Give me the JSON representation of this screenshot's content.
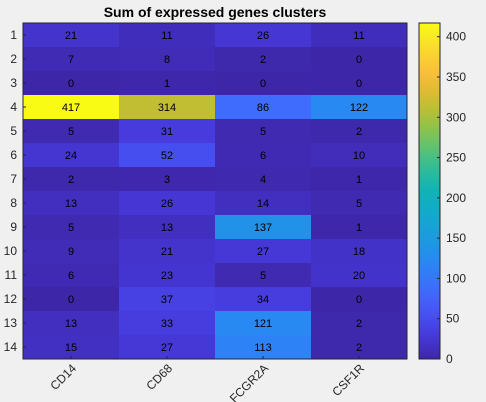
{
  "chart_data": {
    "type": "heatmap",
    "title": "Sum of expressed genes clusters",
    "xlabel": "",
    "ylabel": "",
    "x_categories": [
      "CD14",
      "CD68",
      "FCGR2A",
      "CSF1R"
    ],
    "y_categories": [
      "1",
      "2",
      "3",
      "4",
      "5",
      "6",
      "7",
      "8",
      "9",
      "10",
      "11",
      "12",
      "13",
      "14"
    ],
    "values": [
      [
        21,
        11,
        26,
        11
      ],
      [
        7,
        8,
        2,
        0
      ],
      [
        0,
        1,
        0,
        0
      ],
      [
        417,
        314,
        86,
        122
      ],
      [
        5,
        31,
        5,
        2
      ],
      [
        24,
        52,
        6,
        10
      ],
      [
        2,
        3,
        4,
        1
      ],
      [
        13,
        26,
        14,
        5
      ],
      [
        5,
        13,
        137,
        1
      ],
      [
        9,
        21,
        27,
        18
      ],
      [
        6,
        23,
        5,
        20
      ],
      [
        0,
        37,
        34,
        0
      ],
      [
        13,
        33,
        121,
        2
      ],
      [
        15,
        27,
        113,
        2
      ]
    ],
    "colorbar": {
      "colormap": "parula",
      "range": [
        0,
        417
      ],
      "ticks": [
        0,
        50,
        100,
        150,
        200,
        250,
        300,
        350,
        400
      ],
      "position": "right"
    },
    "grid": false,
    "legend": "none"
  }
}
